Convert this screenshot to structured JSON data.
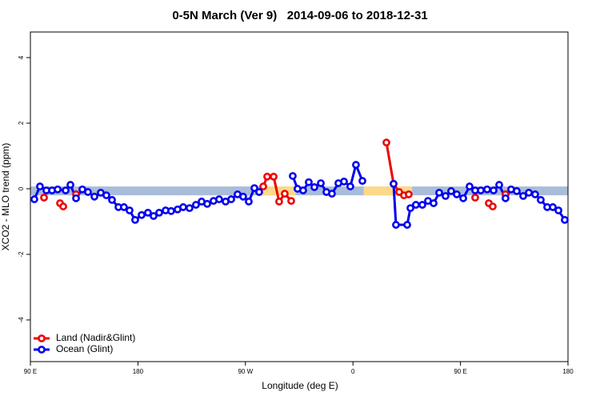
{
  "chart_data": {
    "type": "line",
    "title": "0-5N March (Ver 9)   2014-09-06 to 2018-12-31",
    "x_label": "Longitude (deg E)",
    "y_label": "XCO2 - MLO trend (ppm)",
    "xlim": [
      90,
      540
    ],
    "ylim": [
      -5.27,
      4.78
    ],
    "xticks": [
      {
        "value": 90,
        "label": "90 E"
      },
      {
        "value": 180,
        "label": "180"
      },
      {
        "value": 270,
        "label": "90 W"
      },
      {
        "value": 360,
        "label": "0"
      },
      {
        "value": 450,
        "label": "90 E"
      },
      {
        "value": 540,
        "label": "180"
      }
    ],
    "yticks": [
      -4,
      -2,
      0,
      2,
      4
    ],
    "legend": "bottom-left",
    "bands": [
      {
        "xlim": [
          90,
          540
        ],
        "ylim": [
          -0.2,
          0.07
        ],
        "color": "#a9bdda"
      },
      {
        "xlim": [
          282,
          312
        ],
        "ylim": [
          -0.2,
          0.07
        ],
        "color": "#fcd98a"
      },
      {
        "xlim": [
          369,
          409.5
        ],
        "ylim": [
          -0.2,
          0.07
        ],
        "color": "#fcd98a"
      }
    ],
    "series": [
      {
        "name": "Land (Nadir&Glint)",
        "color": "#ee0000",
        "x": [
          101.4,
          null,
          114.8,
          117.5,
          null,
          128.2,
          null,
          284.9,
          288.2,
          293.6,
          298.2,
          302.9,
          308.3,
          null,
          388.0,
          394.0,
          398.7,
          402.7,
          406.7,
          null,
          462.3,
          null,
          473.7,
          477.0,
          null,
          487.7
        ],
        "values": [
          -0.27,
          null,
          -0.44,
          -0.54,
          null,
          -0.17,
          null,
          0.07,
          0.37,
          0.37,
          -0.39,
          -0.15,
          -0.37,
          null,
          1.41,
          0.15,
          -0.1,
          -0.2,
          -0.17,
          null,
          -0.27,
          null,
          -0.44,
          -0.54,
          null,
          -0.17
        ]
      },
      {
        "name": "Ocean (Glint)",
        "color": "#0000ee",
        "x": [
          93.3,
          98.0,
          103.4,
          108.1,
          112.8,
          119.5,
          123.5,
          128.2,
          133.5,
          138.2,
          143.6,
          148.9,
          153.6,
          158.3,
          163.7,
          168.3,
          173.0,
          177.7,
          183.1,
          188.4,
          193.1,
          197.8,
          203.2,
          207.8,
          213.2,
          217.9,
          223.2,
          228.6,
          233.3,
          238.0,
          243.3,
          248.0,
          253.4,
          258.1,
          263.4,
          268.1,
          272.8,
          277.5,
          281.5,
          null,
          309.6,
          313.6,
          318.3,
          323.0,
          327.7,
          333.1,
          337.8,
          342.4,
          347.8,
          352.5,
          357.8,
          362.5,
          367.9,
          null,
          394.0,
          396.0,
          405.4,
          408.1,
          412.7,
          418.1,
          422.8,
          427.5,
          432.2,
          437.5,
          442.2,
          446.9,
          452.3,
          457.6,
          462.3,
          467.0,
          472.3,
          477.7,
          482.4,
          487.7,
          492.4,
          497.1,
          502.5,
          507.2,
          512.5,
          517.2,
          522.6,
          527.3,
          532.0,
          537.3
        ],
        "values": [
          -0.32,
          0.07,
          -0.05,
          -0.05,
          -0.02,
          -0.05,
          0.12,
          -0.29,
          -0.02,
          -0.1,
          -0.24,
          -0.12,
          -0.2,
          -0.34,
          -0.56,
          -0.56,
          -0.66,
          -0.95,
          -0.8,
          -0.73,
          -0.83,
          -0.73,
          -0.66,
          -0.68,
          -0.63,
          -0.56,
          -0.59,
          -0.49,
          -0.39,
          -0.46,
          -0.37,
          -0.32,
          -0.39,
          -0.32,
          -0.17,
          -0.24,
          -0.39,
          0.02,
          -0.1,
          null,
          0.39,
          0.0,
          -0.05,
          0.2,
          0.05,
          0.17,
          -0.1,
          -0.15,
          0.17,
          0.22,
          0.07,
          0.73,
          0.24,
          null,
          0.15,
          -1.1,
          -1.1,
          -0.59,
          -0.49,
          -0.49,
          -0.37,
          -0.44,
          -0.12,
          -0.22,
          -0.07,
          -0.17,
          -0.29,
          0.07,
          -0.05,
          -0.05,
          -0.02,
          -0.05,
          0.12,
          -0.29,
          -0.02,
          -0.07,
          -0.22,
          -0.12,
          -0.17,
          -0.34,
          -0.56,
          -0.56,
          -0.66,
          -0.95
        ]
      }
    ]
  }
}
